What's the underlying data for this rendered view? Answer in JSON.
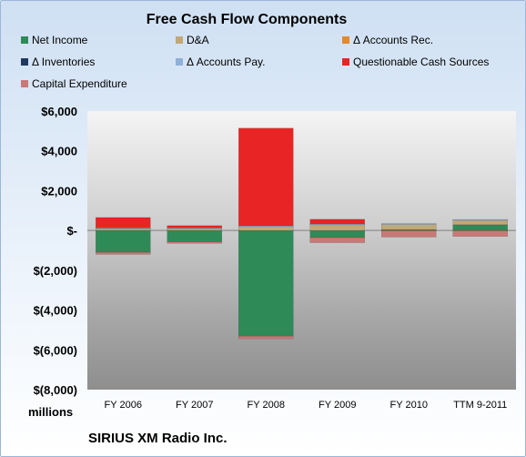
{
  "chart_data": {
    "type": "bar",
    "stacked": true,
    "title": "Free Cash Flow Components",
    "units_label": "millions",
    "company": "SIRIUS XM Radio Inc.",
    "categories": [
      "FY 2006",
      "FY 2007",
      "FY 2008",
      "FY 2009",
      "FY 2010",
      "TTM 9-2011"
    ],
    "ylim": [
      -8000,
      6000
    ],
    "yticks": [
      6000,
      4000,
      2000,
      0,
      -2000,
      -4000,
      -6000,
      -8000
    ],
    "ytick_labels": [
      "$6,000",
      "$4,000",
      "$2,000",
      "$-",
      "$(2,000)",
      "$(4,000)",
      "$(6,000)",
      "$(8,000)"
    ],
    "grid": false,
    "legend_position": "top",
    "series": [
      {
        "name": "Net Income",
        "color": "#2e8b57",
        "values": [
          -1100,
          -565,
          -5310,
          -343,
          43,
          290
        ]
      },
      {
        "name": "D&A",
        "color": "#c2a878",
        "values": [
          100,
          110,
          200,
          310,
          285,
          250
        ]
      },
      {
        "name": "Δ Accounts Rec.",
        "color": "#e3892f",
        "values": [
          0,
          0,
          0,
          -20,
          -20,
          -20
        ]
      },
      {
        "name": "Δ Inventories",
        "color": "#1f3a5f",
        "values": [
          0,
          0,
          0,
          0,
          0,
          0
        ]
      },
      {
        "name": "Δ Accounts Pay.",
        "color": "#8fb0d8",
        "values": [
          30,
          20,
          40,
          20,
          20,
          10
        ]
      },
      {
        "name": "Questionable Cash Sources",
        "color": "#e82424",
        "values": [
          520,
          110,
          4900,
          230,
          0,
          0
        ]
      },
      {
        "name": "Capital Expenditure",
        "color": "#c97878",
        "values": [
          -100,
          -80,
          -130,
          -250,
          -310,
          -280
        ]
      }
    ]
  }
}
